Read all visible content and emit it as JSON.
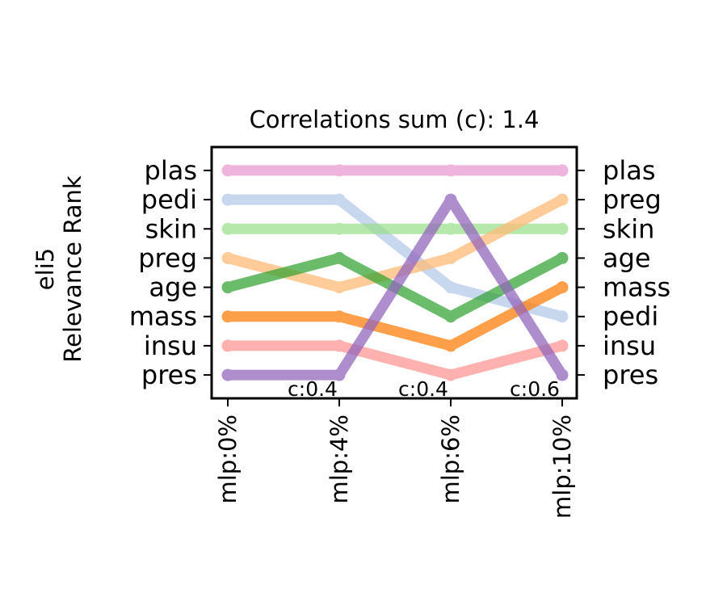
{
  "chart_data": {
    "type": "line",
    "title": "Correlations sum (c): 1.4",
    "ylabel": [
      "eli5",
      "Relevance Rank"
    ],
    "x": [
      "mlp:0%",
      "mlp:4%",
      "mlp:6%",
      "mlp:10%"
    ],
    "left_tick_labels": [
      "plas",
      "pedi",
      "skin",
      "preg",
      "age",
      "mass",
      "insu",
      "pres"
    ],
    "right_tick_labels": [
      "plas",
      "preg",
      "skin",
      "age",
      "mass",
      "pedi",
      "insu",
      "pres"
    ],
    "annotations": [
      "c:0.4",
      "c:0.4",
      "c:0.6"
    ],
    "series": [
      {
        "name": "plas",
        "color": "#e377c2",
        "alpha": 0.55,
        "values": [
          1,
          1,
          1,
          1
        ]
      },
      {
        "name": "pedi",
        "color": "#aec7e8",
        "alpha": 0.7,
        "values": [
          2,
          2,
          5,
          6
        ]
      },
      {
        "name": "skin",
        "color": "#98df8a",
        "alpha": 0.7,
        "values": [
          3,
          3,
          3,
          3
        ]
      },
      {
        "name": "preg",
        "color": "#ffbb78",
        "alpha": 0.75,
        "values": [
          4,
          5,
          4,
          2
        ]
      },
      {
        "name": "insu",
        "color": "#ff9896",
        "alpha": 0.75,
        "values": [
          7,
          7,
          8,
          7
        ]
      },
      {
        "name": "age",
        "color": "#2ca02c",
        "alpha": 0.7,
        "values": [
          5,
          4,
          6,
          4
        ]
      },
      {
        "name": "mass",
        "color": "#ff7f0e",
        "alpha": 0.75,
        "values": [
          6,
          6,
          7,
          5
        ]
      },
      {
        "name": "pres",
        "color": "#9467bd",
        "alpha": 0.75,
        "values": [
          8,
          8,
          2,
          8
        ]
      }
    ],
    "ylim": [
      0.2,
      8.8
    ]
  }
}
